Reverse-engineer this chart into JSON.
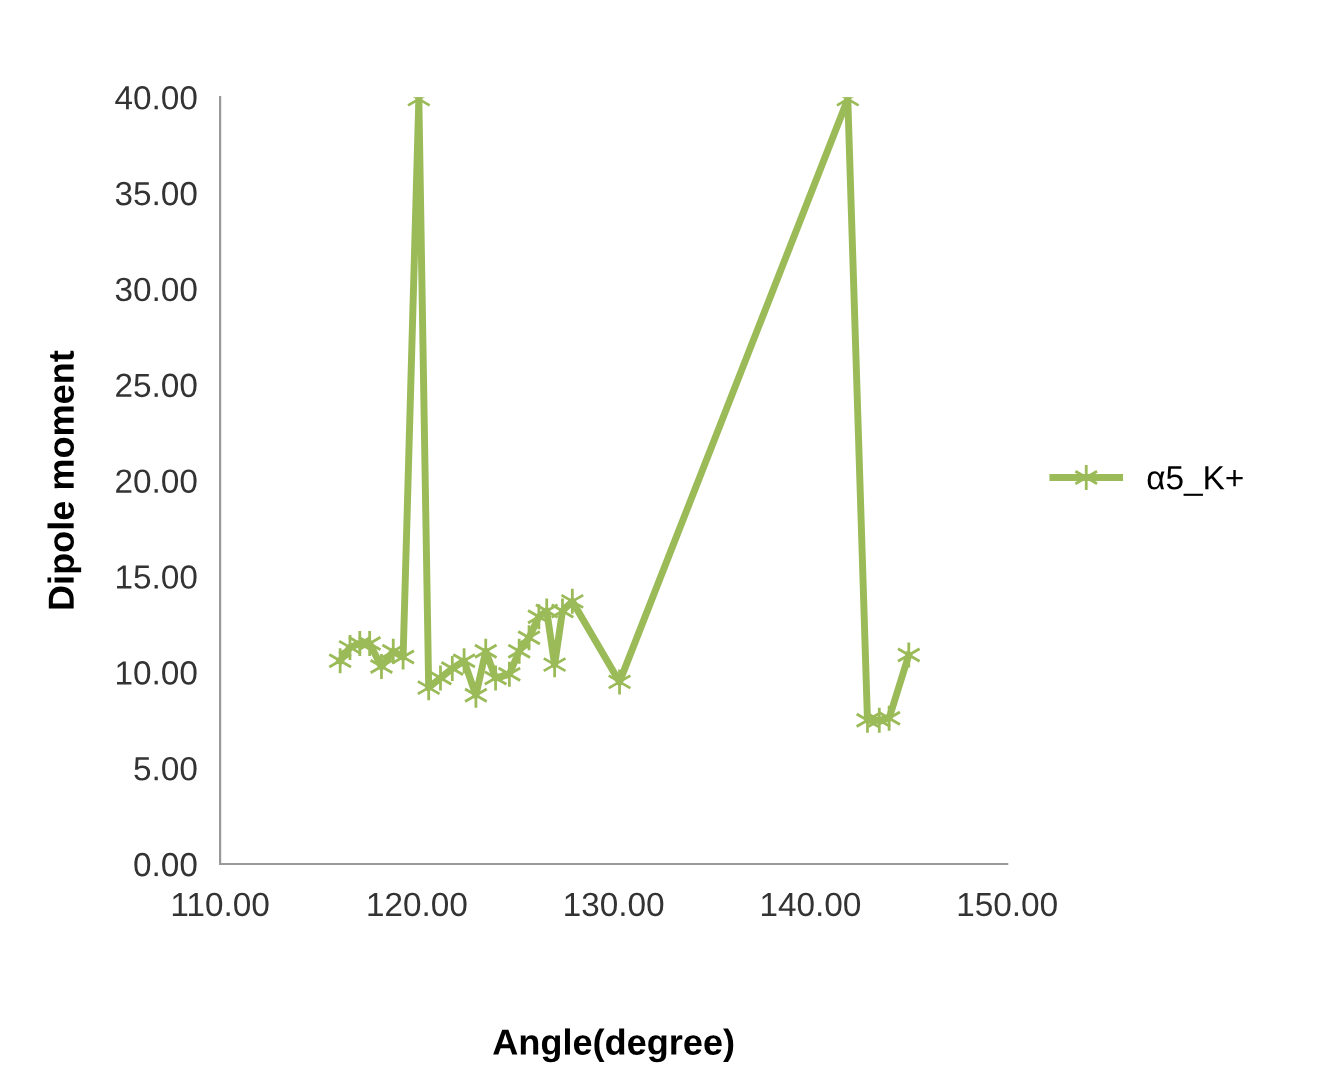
{
  "chart_data": {
    "type": "line",
    "xlabel": "Angle(degree)",
    "ylabel": "Dipole moment",
    "xlim": [
      110,
      150
    ],
    "xticks": [
      {
        "value": 110,
        "label": "110.00"
      },
      {
        "value": 120,
        "label": "120.00"
      },
      {
        "value": 130,
        "label": "130.00"
      },
      {
        "value": 140,
        "label": "140.00"
      },
      {
        "value": 150,
        "label": "150.00"
      }
    ],
    "ylim": [
      0,
      40
    ],
    "yticks": [
      {
        "value": 0,
        "label": "0.00"
      },
      {
        "value": 5,
        "label": "5.00"
      },
      {
        "value": 10,
        "label": "10.00"
      },
      {
        "value": 15,
        "label": "15.00"
      },
      {
        "value": 20,
        "label": "20.00"
      },
      {
        "value": 25,
        "label": "25.00"
      },
      {
        "value": 30,
        "label": "30.00"
      },
      {
        "value": 35,
        "label": "35.00"
      },
      {
        "value": 40,
        "label": "40.00"
      }
    ],
    "grid": false,
    "legend": "right",
    "marker": "cross",
    "line_style": "solid",
    "series": [
      {
        "name": "α5_K+",
        "color": "#9bbb59",
        "x": [
          116.1,
          116.6,
          117.1,
          117.6,
          118.2,
          118.8,
          119.3,
          120.1,
          120.6,
          121.2,
          121.8,
          122.4,
          123.0,
          123.5,
          124.0,
          124.7,
          125.2,
          125.7,
          126.2,
          126.6,
          127.0,
          127.4,
          127.9,
          130.3,
          141.9,
          142.9,
          143.5,
          144.0,
          145.0
        ],
        "values": [
          10.6,
          11.3,
          11.5,
          11.5,
          10.3,
          11.1,
          10.8,
          39.9,
          9.2,
          9.7,
          10.2,
          10.6,
          8.8,
          11.1,
          9.7,
          9.9,
          11.1,
          11.8,
          12.9,
          13.2,
          10.4,
          13.2,
          13.7,
          9.5,
          39.9,
          7.5,
          7.5,
          7.6,
          10.9
        ]
      }
    ]
  }
}
